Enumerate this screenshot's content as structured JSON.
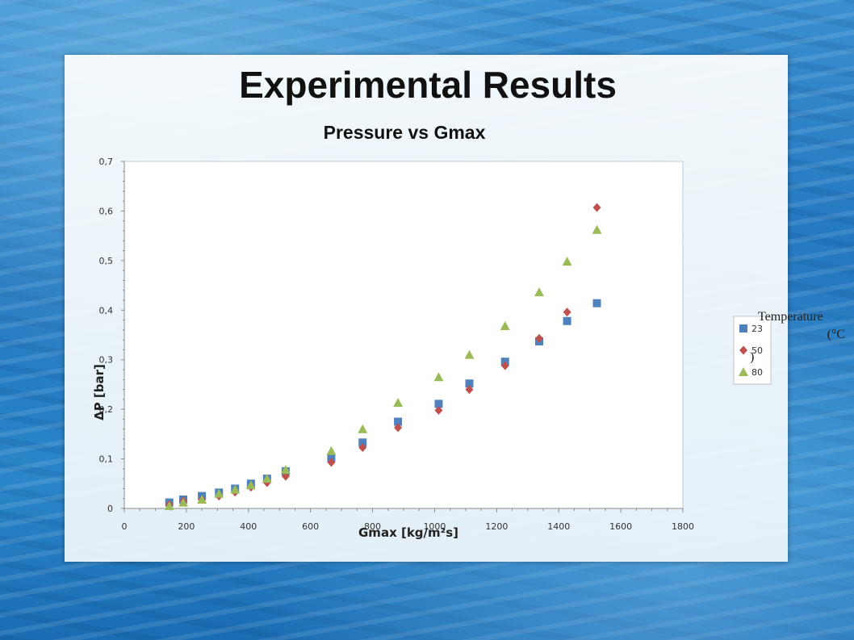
{
  "slide": {
    "title": "Experimental Results"
  },
  "legend_title": {
    "line1": "Temperature",
    "line2": "(°C",
    "line3": ")"
  },
  "chart_data": {
    "type": "scatter",
    "title": "Pressure vs Gmax",
    "xlabel": "Gmax [kg/m²s]",
    "ylabel": "ΔP [bar]",
    "xlim": [
      0,
      1800
    ],
    "ylim": [
      0,
      0.7
    ],
    "xticks": [
      0,
      200,
      400,
      600,
      800,
      1000,
      1200,
      1400,
      1600,
      1800
    ],
    "yticks": [
      0,
      0.1,
      0.2,
      0.3,
      0.4,
      0.5,
      0.6,
      0.7
    ],
    "tick_format": "comma-decimal",
    "legend_position": "right",
    "series": [
      {
        "name": "23",
        "marker": "square",
        "color": "#4f81bd",
        "points": [
          [
            145,
            0.012
          ],
          [
            190,
            0.018
          ],
          [
            250,
            0.025
          ],
          [
            305,
            0.032
          ],
          [
            357,
            0.04
          ],
          [
            408,
            0.05
          ],
          [
            460,
            0.06
          ],
          [
            520,
            0.075
          ],
          [
            667,
            0.102
          ],
          [
            768,
            0.133
          ],
          [
            882,
            0.175
          ],
          [
            1013,
            0.211
          ],
          [
            1112,
            0.252
          ],
          [
            1227,
            0.296
          ],
          [
            1337,
            0.337
          ],
          [
            1427,
            0.378
          ],
          [
            1523,
            0.414
          ]
        ]
      },
      {
        "name": "50",
        "marker": "diamond",
        "color": "#c0504d",
        "points": [
          [
            145,
            0.008
          ],
          [
            190,
            0.015
          ],
          [
            250,
            0.018
          ],
          [
            305,
            0.025
          ],
          [
            357,
            0.033
          ],
          [
            408,
            0.043
          ],
          [
            460,
            0.052
          ],
          [
            520,
            0.065
          ],
          [
            667,
            0.093
          ],
          [
            768,
            0.123
          ],
          [
            882,
            0.163
          ],
          [
            1013,
            0.198
          ],
          [
            1112,
            0.24
          ],
          [
            1227,
            0.288
          ],
          [
            1337,
            0.343
          ],
          [
            1427,
            0.396
          ],
          [
            1523,
            0.607
          ]
        ]
      },
      {
        "name": "80",
        "marker": "triangle",
        "color": "#9bbb59",
        "points": [
          [
            145,
            0.005
          ],
          [
            190,
            0.012
          ],
          [
            250,
            0.018
          ],
          [
            305,
            0.03
          ],
          [
            357,
            0.038
          ],
          [
            408,
            0.047
          ],
          [
            460,
            0.06
          ],
          [
            520,
            0.078
          ],
          [
            667,
            0.116
          ],
          [
            768,
            0.16
          ],
          [
            882,
            0.213
          ],
          [
            1013,
            0.265
          ],
          [
            1112,
            0.31
          ],
          [
            1227,
            0.368
          ],
          [
            1337,
            0.436
          ],
          [
            1427,
            0.498
          ],
          [
            1523,
            0.562
          ]
        ]
      }
    ]
  }
}
